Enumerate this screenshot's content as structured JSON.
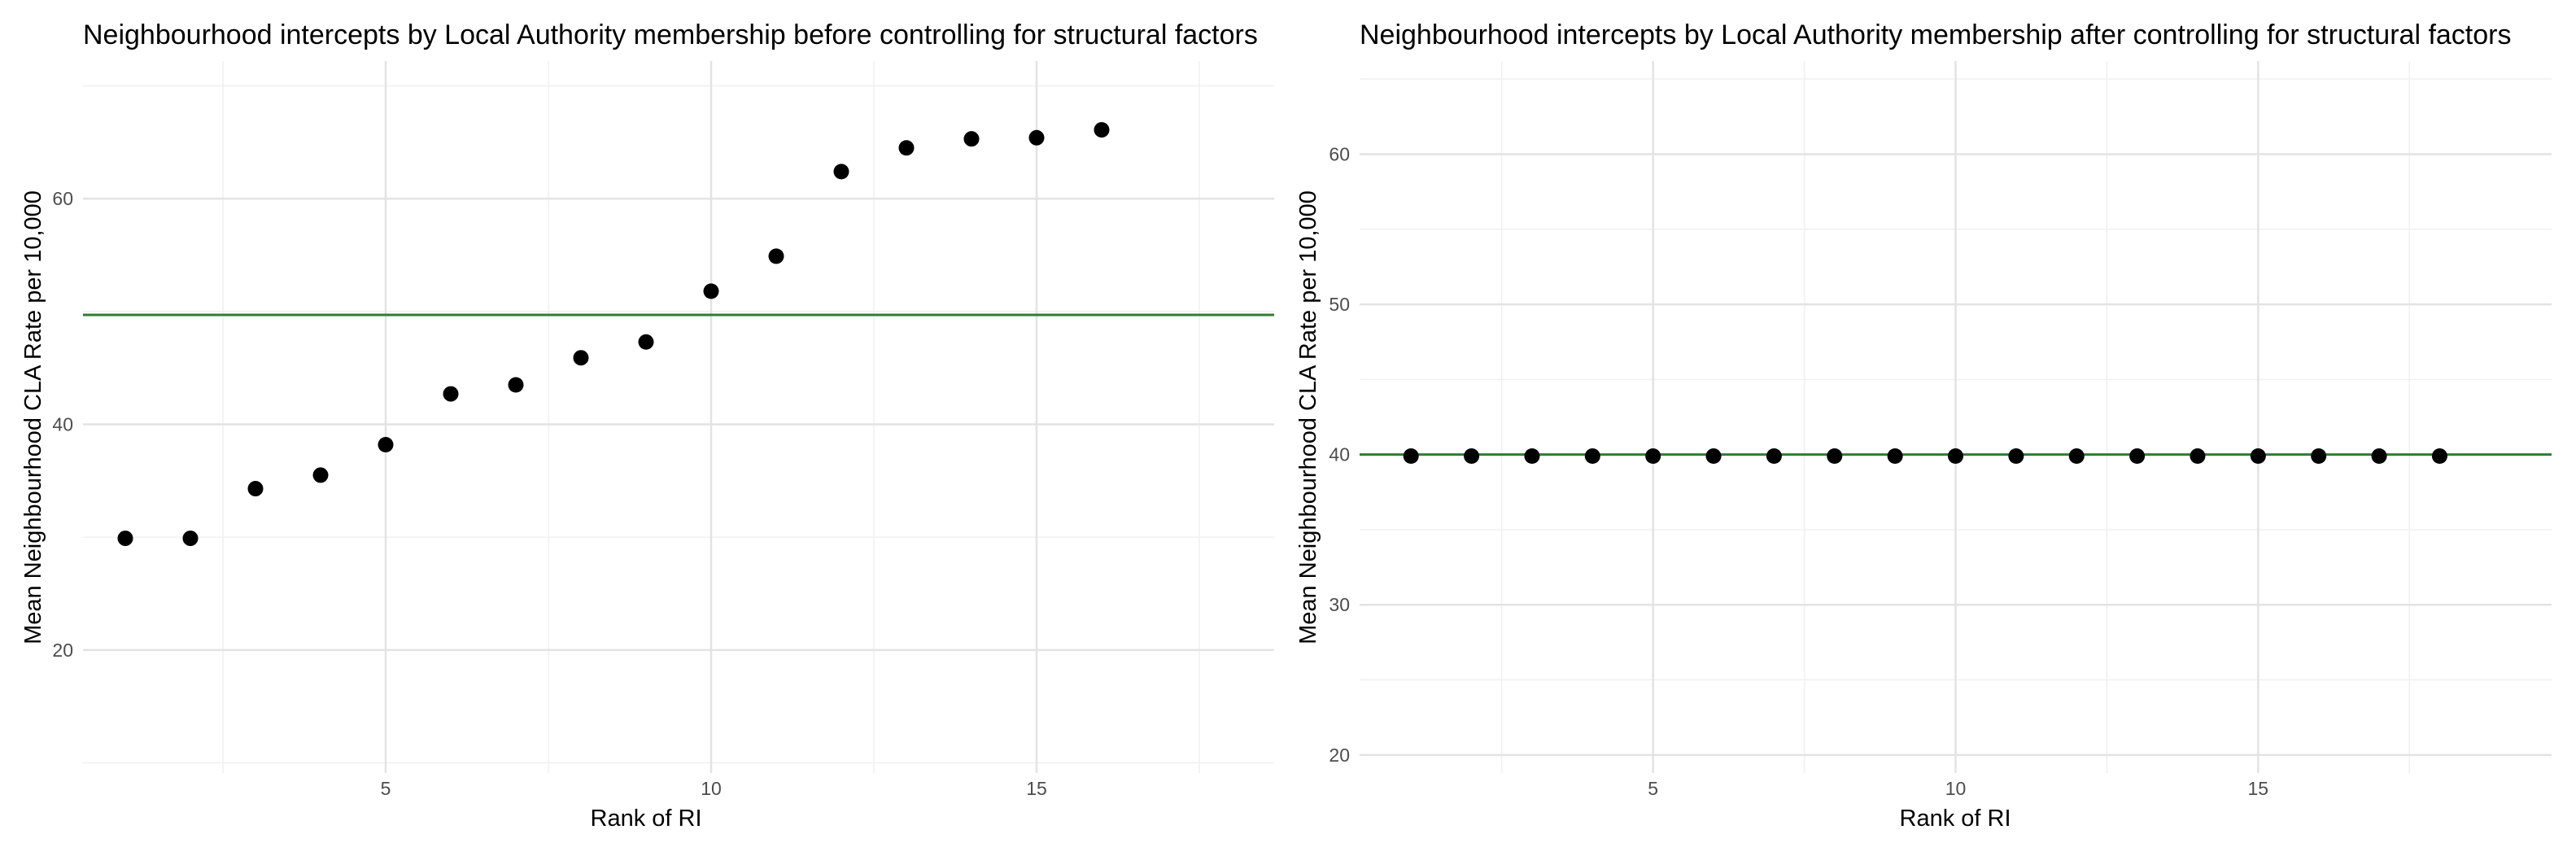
{
  "chart_data": [
    {
      "type": "scatter",
      "title": "Neighbourhood intercepts by Local Authority membership before controlling for structural factors",
      "xlabel": "Rank of RI",
      "ylabel": "Mean Neighbourhood CLA Rate per 10,000",
      "xlim": [
        0.35,
        18.65
      ],
      "ylim": [
        9.1,
        72.2
      ],
      "x_ticks": [
        5,
        10,
        15
      ],
      "x_tick_labels": [
        "5",
        "10",
        "15"
      ],
      "y_ticks": [
        20,
        40,
        60
      ],
      "y_tick_labels": [
        "20",
        "40",
        "60"
      ],
      "grid": true,
      "reference_line": {
        "y": 49.7,
        "color": "#2e7d32"
      },
      "point_color": "#000000",
      "x": [
        1,
        2,
        3,
        4,
        5,
        6,
        7,
        8,
        9,
        10,
        11,
        12,
        13,
        14,
        15,
        16
      ],
      "y": [
        29.9,
        29.9,
        34.3,
        35.5,
        38.2,
        42.7,
        43.5,
        45.9,
        47.3,
        51.8,
        54.9,
        62.4,
        64.5,
        65.3,
        65.4,
        66.1
      ]
    },
    {
      "type": "scatter",
      "title": "Neighbourhood intercepts by Local Authority membership after controlling for structural factors",
      "xlabel": "Rank of RI",
      "ylabel": "Mean Neighbourhood CLA Rate per 10,000",
      "xlim": [
        0.15,
        19.85
      ],
      "ylim": [
        18.8,
        66.2
      ],
      "x_ticks": [
        5,
        10,
        15
      ],
      "x_tick_labels": [
        "5",
        "10",
        "15"
      ],
      "y_ticks": [
        20,
        30,
        40,
        50,
        60
      ],
      "y_tick_labels": [
        "20",
        "30",
        "40",
        "50",
        "60"
      ],
      "grid": true,
      "reference_line": {
        "y": 40.0,
        "color": "#2e7d32"
      },
      "point_color": "#000000",
      "x": [
        1,
        2,
        3,
        4,
        5,
        6,
        7,
        8,
        9,
        10,
        11,
        12,
        13,
        14,
        15,
        16,
        17,
        18
      ],
      "y": [
        39.9,
        39.9,
        39.9,
        39.9,
        39.9,
        39.9,
        39.9,
        39.9,
        39.9,
        39.9,
        39.9,
        39.9,
        39.9,
        39.9,
        39.9,
        39.9,
        39.9,
        39.9
      ]
    }
  ]
}
